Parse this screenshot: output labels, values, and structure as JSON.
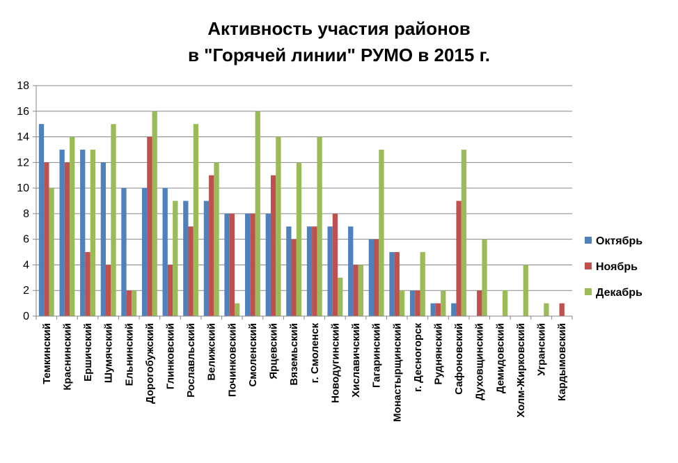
{
  "chart_data": {
    "type": "bar",
    "title": [
      "Активность участия районов",
      "в \"Горячей линии\" РУМО в 2015 г."
    ],
    "categories": [
      "Темкинский",
      "Краснинский",
      "Ершичский",
      "Шумячский",
      "Ельнинский",
      "Дорогобужский",
      "Глинковский",
      "Рославльский",
      "Велижский",
      "Починковский",
      "Смоленский",
      "Ярцевский",
      "Вяземьский",
      "г. Смоленск",
      "Новодугинский",
      "Хиславичский",
      "Гагаринский",
      "Монастырщинский",
      "г. Десногорск",
      "Руднянский",
      "Сафоновский",
      "Духовщинский",
      "Демидовский",
      "Холм-Жирковский",
      "Угранский",
      "Кардымовский"
    ],
    "series": [
      {
        "name": "Октябрь",
        "color": "#4F81BD",
        "values": [
          15,
          13,
          13,
          12,
          10,
          10,
          10,
          9,
          9,
          8,
          8,
          8,
          7,
          7,
          7,
          7,
          6,
          5,
          2,
          1,
          1,
          0,
          0,
          0,
          0,
          0
        ]
      },
      {
        "name": "Ноябрь",
        "color": "#C0504D",
        "values": [
          12,
          12,
          5,
          4,
          2,
          14,
          4,
          7,
          11,
          8,
          8,
          11,
          6,
          7,
          8,
          4,
          6,
          5,
          2,
          1,
          9,
          2,
          0,
          0,
          0,
          1
        ]
      },
      {
        "name": "Декабрь",
        "color": "#9BBB59",
        "values": [
          10,
          14,
          13,
          15,
          2,
          16,
          9,
          15,
          12,
          1,
          16,
          14,
          12,
          14,
          3,
          4,
          13,
          2,
          5,
          2,
          13,
          6,
          2,
          4,
          1,
          0
        ]
      }
    ],
    "yticks": [
      "0",
      "2",
      "4",
      "6",
      "8",
      "10",
      "12",
      "14",
      "16",
      "18"
    ],
    "ylim": [
      0,
      18
    ],
    "grid": true,
    "legend_position": "right"
  }
}
